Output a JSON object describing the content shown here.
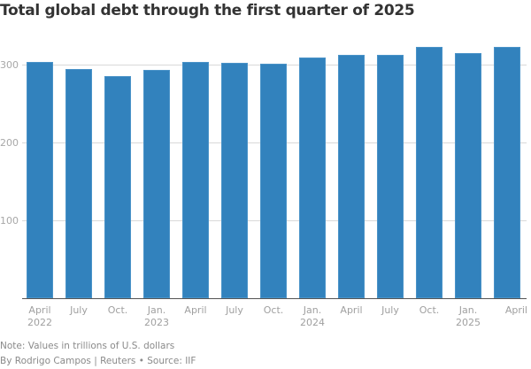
{
  "chart_data": {
    "type": "bar",
    "title": "Total global debt through the first quarter of 2025",
    "xlabel": "",
    "ylabel": "",
    "units": "trillions of U.S. dollars",
    "ylim": [
      0,
      330
    ],
    "yticks": [
      100,
      200,
      300
    ],
    "grid": true,
    "legend": "none",
    "categories": [
      "April 2022",
      "July 2022",
      "Oct. 2022",
      "Jan. 2023",
      "April 2023",
      "July 2023",
      "Oct. 2023",
      "Jan. 2024",
      "April 2024",
      "July 2024",
      "Oct. 2024",
      "Jan. 2025",
      "April 2025"
    ],
    "tick_labels": [
      {
        "line1": "April",
        "line2": "2022"
      },
      {
        "line1": "July",
        "line2": ""
      },
      {
        "line1": "Oct.",
        "line2": ""
      },
      {
        "line1": "Jan.",
        "line2": "2023"
      },
      {
        "line1": "April",
        "line2": ""
      },
      {
        "line1": "July",
        "line2": ""
      },
      {
        "line1": "Oct.",
        "line2": ""
      },
      {
        "line1": "Jan.",
        "line2": "2024"
      },
      {
        "line1": "April",
        "line2": ""
      },
      {
        "line1": "July",
        "line2": ""
      },
      {
        "line1": "Oct.",
        "line2": ""
      },
      {
        "line1": "Jan.",
        "line2": "2025"
      },
      {
        "line1": "April",
        "line2": ""
      }
    ],
    "values": [
      303,
      294,
      285,
      293,
      303,
      302,
      301,
      309,
      312,
      312,
      323,
      315,
      323
    ],
    "bar_color": "#3282bd"
  },
  "footer": {
    "note": "Note: Values in trillions of U.S. dollars",
    "credit": "By Rodrigo Campos | Reuters • Source: IIF"
  }
}
